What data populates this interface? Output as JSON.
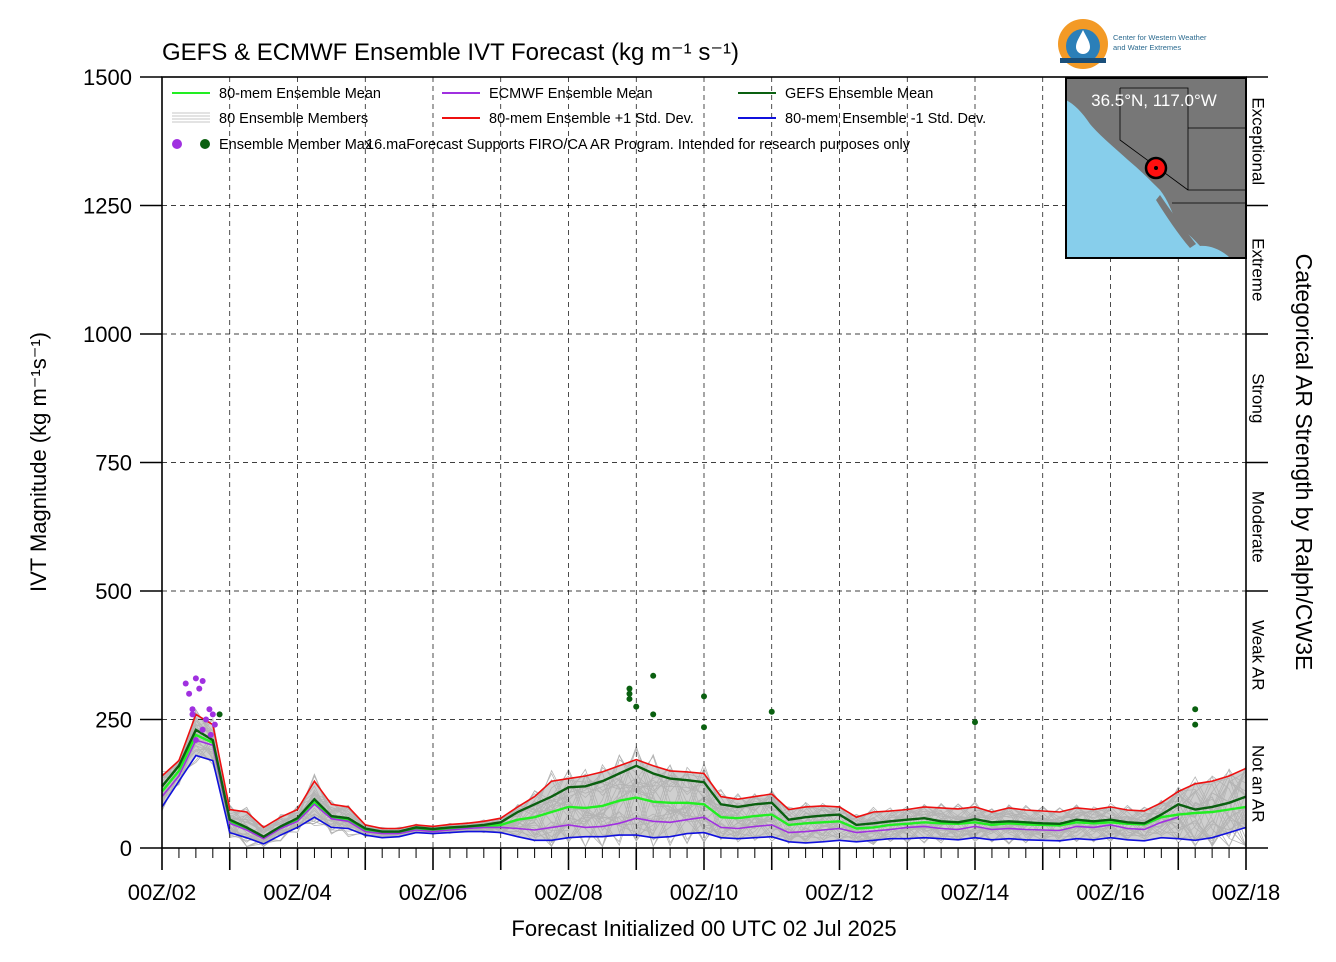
{
  "colors": {
    "mean80": "#22ee22",
    "ecmwf": "#a030e0",
    "gefs": "#0a6010",
    "plus1": "#ee1010",
    "minus1": "#1010dd",
    "members": "#b4b4b4",
    "band": "#cfcfcf",
    "ocean": "#87ceeb",
    "land": "#777777"
  },
  "logo": {
    "line1": "Center for Western Weather",
    "line2": "and Water Extremes"
  },
  "inset": {
    "label": "36.5°N, 117.0°W"
  },
  "chart_data": {
    "type": "line",
    "title": "GEFS & ECMWF Ensemble IVT Forecast (kg m⁻¹ s⁻¹)",
    "xlabel": "Forecast Initialized 00 UTC 02 Jul 2025",
    "ylabel": "IVT Magnitude (kg m⁻¹s⁻¹)",
    "right_label": "Categorical AR Strength by Ralph/CW3E",
    "ylim": [
      0,
      1500
    ],
    "xlim_days": [
      2,
      18
    ],
    "yticks": [
      "0",
      "250",
      "500",
      "750",
      "1000",
      "1250",
      "1500"
    ],
    "xticks": [
      "00Z/02",
      "00Z/04",
      "00Z/06",
      "00Z/08",
      "00Z/10",
      "00Z/12",
      "00Z/14",
      "00Z/16",
      "00Z/18"
    ],
    "grid": true,
    "categories": [
      {
        "name": "Not an AR",
        "lo": 0,
        "hi": 250
      },
      {
        "name": "Weak AR",
        "lo": 250,
        "hi": 500
      },
      {
        "name": "Moderate",
        "lo": 500,
        "hi": 750
      },
      {
        "name": "Strong",
        "lo": 750,
        "hi": 1000
      },
      {
        "name": "Extreme",
        "lo": 1000,
        "hi": 1250
      },
      {
        "name": "Exceptional",
        "lo": 1250,
        "hi": 1500
      }
    ],
    "legend": {
      "placement": "top-left",
      "entries": [
        {
          "label": "80-mem Ensemble Mean",
          "style": "mean80"
        },
        {
          "label": "ECMWF Ensemble Mean",
          "style": "ecmwf"
        },
        {
          "label": "GEFS Ensemble Mean",
          "style": "gefs"
        },
        {
          "label": "80 Ensemble Members",
          "style": "members"
        },
        {
          "label": "80-mem Ensemble +1 Std. Dev.",
          "style": "plus1"
        },
        {
          "label": "80-mem Ensemble -1 Std. Dev.",
          "style": "minus1"
        }
      ],
      "max_label": "Ensemble Member Max",
      "note": "16.maForecast Supports FIRO/CA AR Program. Intended for research purposes only"
    },
    "series": [
      {
        "name": "80-mem Ensemble Mean",
        "color_key": "mean80",
        "x": [
          2,
          2.25,
          2.5,
          2.75,
          3,
          3.25,
          3.5,
          3.75,
          4,
          4.25,
          4.5,
          4.75,
          5,
          5.25,
          5.5,
          5.75,
          6,
          6.25,
          6.5,
          6.75,
          7,
          7.25,
          7.5,
          7.75,
          8,
          8.25,
          8.5,
          8.75,
          9,
          9.25,
          9.5,
          9.75,
          10,
          10.25,
          10.5,
          10.75,
          11,
          11.25,
          11.5,
          11.75,
          12,
          12.25,
          12.5,
          12.75,
          13,
          13.25,
          13.5,
          13.75,
          14,
          14.25,
          14.5,
          14.75,
          15,
          15.25,
          15.5,
          15.75,
          16,
          16.25,
          16.5,
          16.75,
          17,
          17.25,
          17.5,
          17.75,
          18
        ],
        "y": [
          110,
          150,
          220,
          205,
          50,
          38,
          20,
          40,
          55,
          90,
          60,
          55,
          35,
          30,
          30,
          38,
          35,
          38,
          40,
          42,
          45,
          55,
          60,
          70,
          80,
          78,
          82,
          92,
          98,
          90,
          88,
          88,
          85,
          60,
          58,
          62,
          65,
          45,
          48,
          50,
          52,
          38,
          40,
          45,
          47,
          50,
          48,
          47,
          50,
          45,
          48,
          46,
          45,
          44,
          50,
          48,
          50,
          47,
          46,
          60,
          65,
          68,
          70,
          75,
          80
        ]
      },
      {
        "name": "ECMWF Ensemble Mean",
        "color_key": "ecmwf",
        "x": [
          2,
          2.25,
          2.5,
          2.75,
          3,
          3.25,
          3.5,
          3.75,
          4,
          4.25,
          4.5,
          4.75,
          5,
          5.25,
          5.5,
          5.75,
          6,
          6.25,
          6.5,
          6.75,
          7,
          7.25,
          7.5,
          7.75,
          8,
          8.25,
          8.5,
          8.75,
          9,
          9.25,
          9.5,
          9.75,
          10,
          10.25,
          10.5,
          10.75,
          11,
          11.25,
          11.5,
          11.75,
          12,
          12.25,
          12.5,
          12.75,
          13,
          13.25,
          13.5,
          13.75,
          14,
          14.25,
          14.5,
          14.75,
          15,
          15.25,
          15.5,
          15.75,
          16,
          16.25,
          16.5,
          16.75,
          17
        ],
        "y": [
          100,
          140,
          210,
          200,
          48,
          35,
          18,
          38,
          52,
          85,
          57,
          52,
          32,
          28,
          28,
          35,
          32,
          35,
          38,
          40,
          40,
          38,
          35,
          40,
          45,
          40,
          42,
          48,
          58,
          52,
          50,
          55,
          60,
          40,
          38,
          42,
          45,
          30,
          32,
          35,
          38,
          30,
          33,
          36,
          40,
          42,
          38,
          36,
          42,
          36,
          38,
          36,
          35,
          34,
          42,
          40,
          45,
          38,
          36,
          50,
          60
        ]
      },
      {
        "name": "GEFS Ensemble Mean",
        "color_key": "gefs",
        "x": [
          2,
          2.25,
          2.5,
          2.75,
          3,
          3.25,
          3.5,
          3.75,
          4,
          4.25,
          4.5,
          4.75,
          5,
          5.25,
          5.5,
          5.75,
          6,
          6.25,
          6.5,
          6.75,
          7,
          7.25,
          7.5,
          7.75,
          8,
          8.25,
          8.5,
          8.75,
          9,
          9.25,
          9.5,
          9.75,
          10,
          10.25,
          10.5,
          10.75,
          11,
          11.25,
          11.5,
          11.75,
          12,
          12.25,
          12.5,
          12.75,
          13,
          13.25,
          13.5,
          13.75,
          14,
          14.25,
          14.5,
          14.75,
          15,
          15.25,
          15.5,
          15.75,
          16,
          16.25,
          16.5,
          16.75,
          17,
          17.25,
          17.5,
          17.75,
          18
        ],
        "y": [
          120,
          160,
          230,
          210,
          55,
          40,
          22,
          42,
          58,
          95,
          62,
          58,
          38,
          32,
          32,
          40,
          37,
          40,
          42,
          45,
          50,
          70,
          85,
          100,
          118,
          120,
          130,
          145,
          160,
          145,
          135,
          132,
          128,
          85,
          80,
          85,
          88,
          55,
          60,
          63,
          65,
          45,
          48,
          52,
          55,
          58,
          52,
          50,
          56,
          50,
          52,
          50,
          48,
          47,
          55,
          52,
          55,
          50,
          48,
          65,
          85,
          75,
          80,
          88,
          100
        ]
      },
      {
        "name": "80-mem Ensemble +1 Std. Dev.",
        "color_key": "plus1",
        "x": [
          2,
          2.25,
          2.5,
          2.75,
          3,
          3.25,
          3.5,
          3.75,
          4,
          4.25,
          4.5,
          4.75,
          5,
          5.25,
          5.5,
          5.75,
          6,
          6.25,
          6.5,
          6.75,
          7,
          7.25,
          7.5,
          7.75,
          8,
          8.25,
          8.5,
          8.75,
          9,
          9.25,
          9.5,
          9.75,
          10,
          10.25,
          10.5,
          10.75,
          11,
          11.25,
          11.5,
          11.75,
          12,
          12.25,
          12.5,
          12.75,
          13,
          13.25,
          13.5,
          13.75,
          14,
          14.25,
          14.5,
          14.75,
          15,
          15.25,
          15.5,
          15.75,
          16,
          16.25,
          16.5,
          16.75,
          17,
          17.25,
          17.5,
          17.75,
          18
        ],
        "y": [
          140,
          170,
          260,
          240,
          75,
          70,
          40,
          60,
          75,
          130,
          85,
          80,
          45,
          38,
          38,
          45,
          42,
          46,
          48,
          52,
          58,
          80,
          100,
          130,
          135,
          140,
          148,
          160,
          172,
          160,
          150,
          148,
          145,
          100,
          95,
          100,
          105,
          75,
          80,
          82,
          80,
          60,
          70,
          72,
          75,
          80,
          78,
          76,
          80,
          70,
          78,
          74,
          72,
          70,
          78,
          75,
          80,
          74,
          72,
          88,
          110,
          125,
          130,
          140,
          155
        ]
      },
      {
        "name": "80-mem Ensemble -1 Std. Dev.",
        "color_key": "minus1",
        "x": [
          2,
          2.25,
          2.5,
          2.75,
          3,
          3.25,
          3.5,
          3.75,
          4,
          4.25,
          4.5,
          4.75,
          5,
          5.25,
          5.5,
          5.75,
          6,
          6.25,
          6.5,
          6.75,
          7,
          7.25,
          7.5,
          7.75,
          8,
          8.25,
          8.5,
          8.75,
          9,
          9.25,
          9.5,
          9.75,
          10,
          10.25,
          10.5,
          10.75,
          11,
          11.25,
          11.5,
          11.75,
          12,
          12.25,
          12.5,
          12.75,
          13,
          13.25,
          13.5,
          13.75,
          14,
          14.25,
          14.5,
          14.75,
          15,
          15.25,
          15.5,
          15.75,
          16,
          16.25,
          16.5,
          16.75,
          17,
          17.25,
          17.5,
          17.75,
          18
        ],
        "y": [
          80,
          130,
          180,
          170,
          30,
          20,
          8,
          25,
          40,
          60,
          40,
          38,
          25,
          20,
          22,
          30,
          28,
          30,
          32,
          32,
          30,
          22,
          15,
          15,
          20,
          22,
          22,
          25,
          25,
          20,
          22,
          28,
          30,
          20,
          18,
          20,
          22,
          12,
          10,
          12,
          15,
          12,
          15,
          18,
          18,
          20,
          18,
          16,
          20,
          16,
          18,
          16,
          15,
          14,
          18,
          16,
          20,
          16,
          14,
          20,
          18,
          15,
          20,
          30,
          40
        ]
      }
    ],
    "member_max": {
      "ecmwf": {
        "x": [
          2.35,
          2.4,
          2.45,
          2.5,
          2.55,
          2.6,
          2.65,
          2.7,
          2.75,
          2.78,
          2.5,
          2.45,
          2.6,
          2.72
        ],
        "y": [
          320,
          300,
          270,
          330,
          310,
          325,
          250,
          270,
          260,
          240,
          210,
          260,
          230,
          220
        ]
      },
      "gefs": {
        "x": [
          2.85,
          8.9,
          8.9,
          8.9,
          9.0,
          9.25,
          9.25,
          10.0,
          10.0,
          11.0,
          14.0,
          17.25,
          17.25
        ],
        "y": [
          260,
          310,
          300,
          290,
          275,
          335,
          260,
          295,
          235,
          265,
          245,
          270,
          240
        ]
      }
    }
  }
}
